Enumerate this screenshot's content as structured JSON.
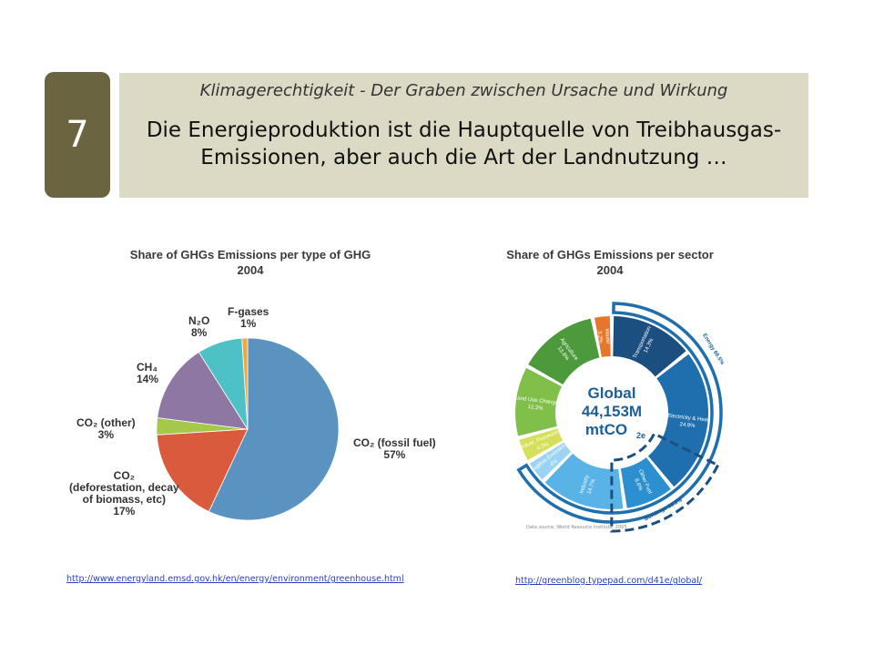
{
  "header": {
    "slide_number": "7",
    "subtitle": "Klimagerechtigkeit - Der Graben zwischen Ursache und Wirkung",
    "title_line1": "Die Energieproduktion ist die Hauptquelle von Treibhausgas-",
    "title_line2": "Emissionen, aber auch die Art der Landnutzung …"
  },
  "links": {
    "left": "http://www.energyland.emsd.gov.hk/en/energy/environment/greenhouse.html",
    "right": "http://greenblog.typepad.com/d41e/global/"
  },
  "chart_data": [
    {
      "type": "pie",
      "title_line1": "Share of GHGs Emissions per type of GHG",
      "title_line2": "2004",
      "slices": [
        {
          "name": "CO₂ (fossil fuel)",
          "value": 57,
          "label": "57%",
          "color": "#5b93c0"
        },
        {
          "name": "CO₂ (deforestation, decay of biomass, etc)",
          "value": 17,
          "label": "17%",
          "color": "#d95a3d"
        },
        {
          "name": "CO₂ (other)",
          "value": 3,
          "label": "3%",
          "color": "#a5c84a"
        },
        {
          "name": "CH₄",
          "value": 14,
          "label": "14%",
          "color": "#8e77a3"
        },
        {
          "name": "N₂O",
          "value": 8,
          "label": "8%",
          "color": "#4ec1c6"
        },
        {
          "name": "F-gases",
          "value": 1,
          "label": "1%",
          "color": "#f1a63f"
        }
      ],
      "labels": {
        "fossil_name": "CO₂ (fossil fuel)",
        "defor_line1": "CO₂",
        "defor_line2": "(deforestation, decay",
        "defor_line3": "of biomass, etc)",
        "other_name": "CO₂ (other)",
        "ch4_name": "CH₄",
        "n2o_name": "N₂O",
        "fgas_name": "F-gases"
      }
    },
    {
      "type": "pie",
      "title_line1": "Share of GHGs Emissions per sector",
      "title_line2": "2004",
      "center_line1": "Global",
      "center_line2": "44,153M",
      "center_line3": "mtCO",
      "center_sub": "2e",
      "source": "Data source: World Resource Institute, 2005",
      "group_labels": {
        "energy": "Energy 66.5%",
        "buildings": "Buildings 15.3%"
      },
      "sectors": [
        {
          "name": "Transportation",
          "label": "14.3%",
          "value": 14.3,
          "color": "#1b4f80"
        },
        {
          "name": "Electricity & Heat",
          "label": "24.9%",
          "value": 24.9,
          "color": "#1f6fae"
        },
        {
          "name": "Other Fuel",
          "label": "8.6%",
          "value": 8.6,
          "color": "#2b8fd0"
        },
        {
          "name": "Industry",
          "label": "14.7%",
          "value": 14.7,
          "color": "#59b3e6"
        },
        {
          "name": "Fugitive Emissions",
          "label": "4%",
          "value": 4.0,
          "color": "#9bd4f2"
        },
        {
          "name": "Indust. Processes",
          "label": "4.3%",
          "value": 4.3,
          "color": "#d5df5a"
        },
        {
          "name": "Land Use Change",
          "label": "12.2%",
          "value": 12.2,
          "color": "#7fbf4a"
        },
        {
          "name": "Agriculture",
          "label": "13.8%",
          "value": 13.8,
          "color": "#4c9a3c"
        },
        {
          "name": "Waste",
          "label": "3.2%",
          "value": 3.2,
          "color": "#e5762a"
        }
      ]
    }
  ]
}
